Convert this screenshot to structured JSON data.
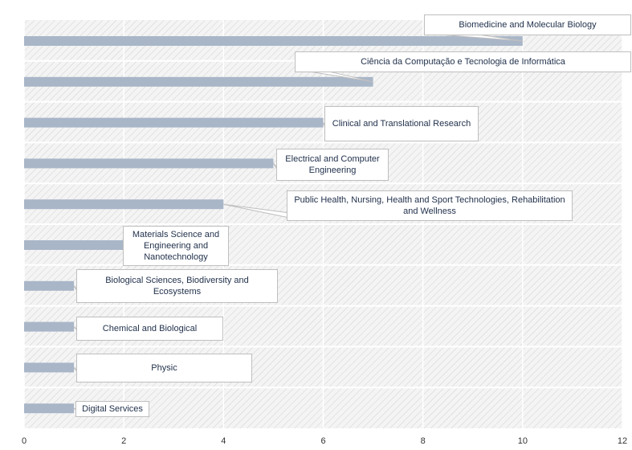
{
  "chart_data": {
    "type": "barh",
    "categories": [
      "Biomedicine and Molecular Biology",
      "Ciência da Computação e Tecnologia de Informática",
      "Clinical and Translational Research",
      "Electrical and Computer Engineering",
      "Public Health, Nursing, Health and Sport Technologies, Rehabilitation and Wellness",
      "Materials Science and Engineering and Nanotechnology",
      "Biological Sciences, Biodiversity and Ecosystems",
      "Chemical and Biological",
      "Physic",
      "Digital Services"
    ],
    "values": [
      10,
      7,
      6,
      5,
      4,
      2,
      1,
      1,
      1,
      1
    ],
    "color": "#a9b6c8",
    "xlim": [
      0,
      12
    ],
    "xticks": [
      0,
      2,
      4,
      6,
      8,
      10,
      12
    ],
    "grid": true
  }
}
